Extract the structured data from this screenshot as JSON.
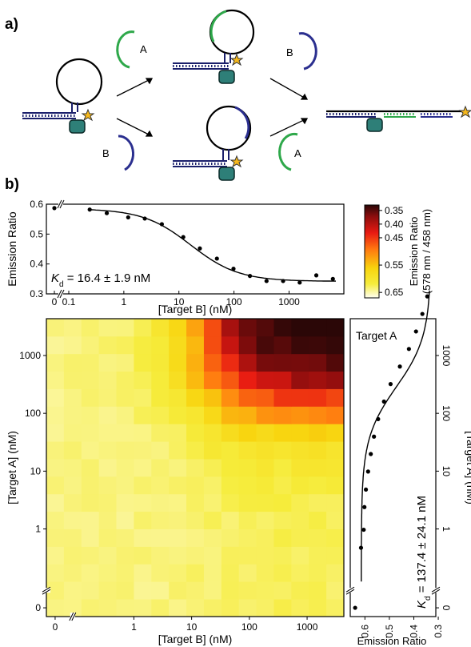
{
  "panel_labels": {
    "a": "a)",
    "b": "b)"
  },
  "schematic": {
    "strand_labels": [
      "A",
      "B",
      "B",
      "A"
    ],
    "colors": {
      "strand_A": "#2ea84a",
      "strand_B": "#2b2f8f",
      "quencher": "#2e7f78",
      "star": "#f6b81c",
      "duplex": "#1a1f6b"
    }
  },
  "chart_data": [
    {
      "type": "scatter",
      "name": "titration-B",
      "xlabel": "[Target B] (nM)",
      "ylabel": "Emission Ratio",
      "xscale": "log-with-zero-break",
      "x_ticks": [
        "0",
        "0.1",
        "1",
        "10",
        "100",
        "1000"
      ],
      "y_ticks": [
        "0.3",
        "0.4",
        "0.5",
        "0.6"
      ],
      "ylim": [
        0.3,
        0.6
      ],
      "x": [
        0,
        0.24,
        0.49,
        1.2,
        2.4,
        4.9,
        12,
        24,
        49,
        98,
        195,
        390,
        780,
        1560,
        3125,
        6250
      ],
      "y": [
        0.587,
        0.582,
        0.57,
        0.556,
        0.552,
        0.533,
        0.49,
        0.452,
        0.418,
        0.384,
        0.36,
        0.343,
        0.343,
        0.338,
        0.362,
        0.35
      ],
      "fit": {
        "kd": 16.4,
        "top": 0.585,
        "bottom": 0.342
      },
      "annotation": {
        "k": "K",
        "sub": "d",
        "rest": " = 16.4 ± 1.9 nM"
      }
    },
    {
      "type": "heatmap",
      "name": "heatmap-AB",
      "xlabel": "[Target B] (nM)",
      "ylabel": "[Target A] (nM)",
      "x_ticks": [
        "0",
        "1",
        "10",
        "100",
        "1000"
      ],
      "y_ticks": [
        "0",
        "1",
        "10",
        "100",
        "1000"
      ],
      "n_cols": 17,
      "n_rows": 17,
      "kd_A": 137.4,
      "kd_B": 16.4,
      "colorbar": {
        "label_line1": "Emission Ratio",
        "label_line2": "(578 nm / 458 nm)",
        "ticks": [
          "0.35",
          "0.40",
          "0.45",
          "0.55",
          "0.65"
        ],
        "range": [
          0.33,
          0.67
        ]
      },
      "colors": {
        "low": "#2b0707",
        "mid1": "#c91515",
        "mid2": "#ff5a10",
        "mid3": "#f5c40c",
        "high": "#fffff2"
      }
    },
    {
      "type": "scatter",
      "name": "titration-A",
      "title": "Target A",
      "xlabel": "Emission Ratio",
      "ylabel": "[Target A] (nM)",
      "x_ticks": [
        "0.6",
        "0.5",
        "0.4",
        "0.3"
      ],
      "y_ticks": [
        "0",
        "1",
        "10",
        "100",
        "1000"
      ],
      "xlim": [
        0.66,
        0.31
      ],
      "x": [
        0.64,
        0.616,
        0.605,
        0.602,
        0.596,
        0.587,
        0.576,
        0.563,
        0.546,
        0.522,
        0.495,
        0.457,
        0.42,
        0.391,
        0.365,
        0.345
      ],
      "y": [
        0,
        0.24,
        0.49,
        1.2,
        2.4,
        4.9,
        9.8,
        19.5,
        39,
        78,
        156,
        312,
        625,
        1250,
        2500,
        5000
      ],
      "fit": {
        "kd": 137.4,
        "top": 0.615,
        "bottom": 0.33
      },
      "annotation": {
        "k": "K",
        "sub": "d",
        "rest": " = 137.4 ± 24.1 nM"
      }
    }
  ]
}
